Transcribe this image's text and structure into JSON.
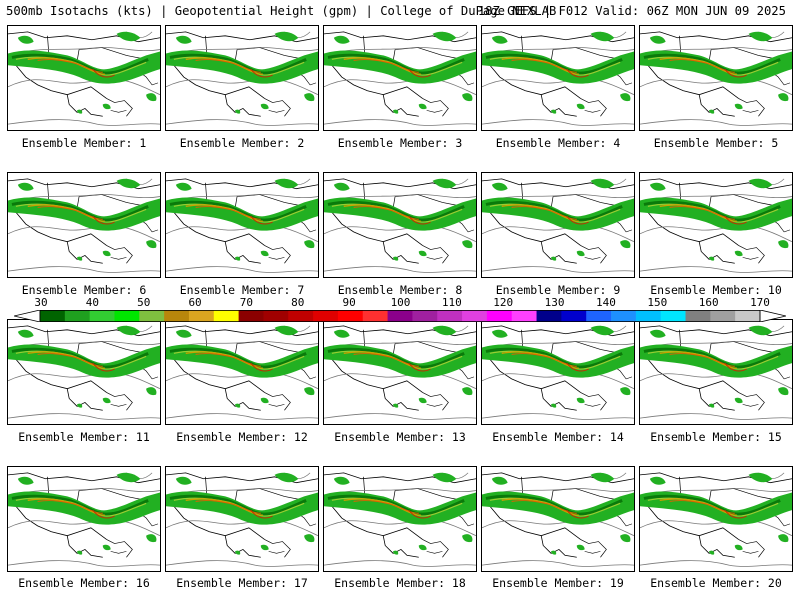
{
  "header": {
    "title_left": "500mb Isotachs (kts) | Geopotential Height (gpm) | College of DuPage NEXLAB",
    "title_right": "18Z GEFS | F012 Valid: 06Z MON JUN 09 2025"
  },
  "panels": [
    {
      "caption": "Ensemble Member: 1"
    },
    {
      "caption": "Ensemble Member: 2"
    },
    {
      "caption": "Ensemble Member: 3"
    },
    {
      "caption": "Ensemble Member: 4"
    },
    {
      "caption": "Ensemble Member: 5"
    },
    {
      "caption": "Ensemble Member: 6"
    },
    {
      "caption": "Ensemble Member: 7"
    },
    {
      "caption": "Ensemble Member: 8"
    },
    {
      "caption": "Ensemble Member: 9"
    },
    {
      "caption": "Ensemble Member: 10"
    },
    {
      "caption": "Ensemble Member: 11"
    },
    {
      "caption": "Ensemble Member: 12"
    },
    {
      "caption": "Ensemble Member: 13"
    },
    {
      "caption": "Ensemble Member: 14"
    },
    {
      "caption": "Ensemble Member: 15"
    },
    {
      "caption": "Ensemble Member: 16"
    },
    {
      "caption": "Ensemble Member: 17"
    },
    {
      "caption": "Ensemble Member: 18"
    },
    {
      "caption": "Ensemble Member: 19"
    },
    {
      "caption": "Ensemble Member: 20"
    }
  ],
  "colorbar": {
    "tick_labels": [
      "30",
      "40",
      "50",
      "60",
      "70",
      "80",
      "90",
      "100",
      "110",
      "120",
      "130",
      "140",
      "150",
      "160",
      "170"
    ],
    "colors": [
      "#006400",
      "#1fa01f",
      "#32cd32",
      "#00e600",
      "#7fbf3f",
      "#b8860b",
      "#daa520",
      "#ffff00",
      "#8b0000",
      "#a00000",
      "#c00000",
      "#e00000",
      "#ff0000",
      "#ff3030",
      "#8b008b",
      "#a020a0",
      "#c030c0",
      "#e040e0",
      "#ff00ff",
      "#ff40ff",
      "#00008b",
      "#0000cd",
      "#1e64ff",
      "#1e90ff",
      "#00bfff",
      "#00e5ff",
      "#808080",
      "#a0a0a0",
      "#c8c8c8"
    ]
  }
}
